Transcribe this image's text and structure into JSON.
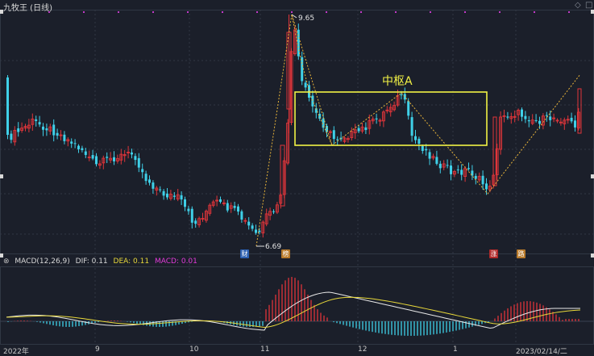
{
  "header": {
    "title": "九牧王 (日线)"
  },
  "icons": {
    "diamond": "diamond-icon",
    "expand": "expand-icon"
  },
  "annotations": {
    "high_price": "9.65",
    "low_price": "6.69",
    "zhongshu_label": "中枢A"
  },
  "markers": [
    {
      "text": "财",
      "color": "#2b5fb0"
    },
    {
      "text": "榜",
      "color": "#b7792a"
    },
    {
      "text": "涨",
      "color": "#b02a2a"
    },
    {
      "text": "路",
      "color": "#b7792a"
    }
  ],
  "macd": {
    "title": "MACD(12,26,9)",
    "dif_label": "DIF: 0.11",
    "dea_label": "DEA: 0.11",
    "macd_label": "MACD: 0.01"
  },
  "time_axis": [
    "2022年",
    "9",
    "10",
    "11",
    "12",
    "1",
    "2023/02/14/二"
  ],
  "colors": {
    "background": "#1b1f2a",
    "up": "#e0353a",
    "down": "#3fd0e8",
    "dif": "#e8e8e8",
    "dea": "#e8d83a",
    "zhongshu_box": "#f2f245",
    "bi_line": "#e8b43a",
    "grid": "#303744"
  },
  "chart_data": {
    "type": "candlestick",
    "title": "九牧王 (日线)",
    "price_annotations": {
      "high": 9.65,
      "low": 6.69
    },
    "pivots": [
      {
        "label": "low",
        "value": 6.69
      },
      {
        "label": "high",
        "value": 9.65
      }
    ],
    "macd": {
      "dif": 0.11,
      "dea": 0.11,
      "macd": 0.01
    }
  }
}
